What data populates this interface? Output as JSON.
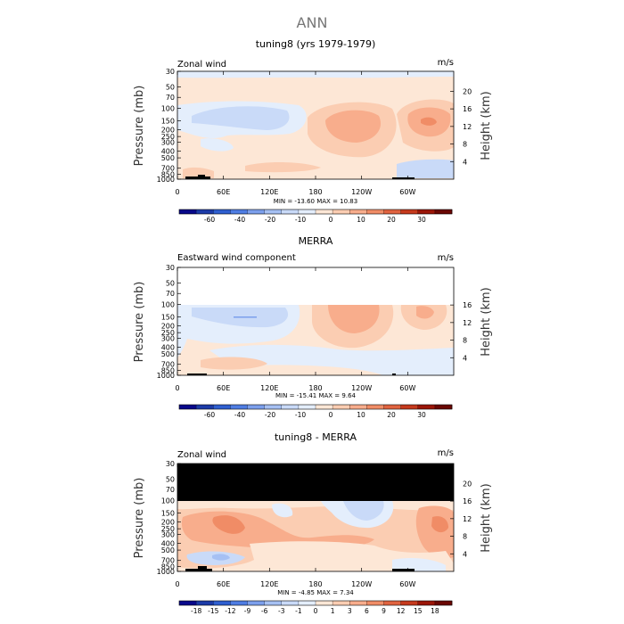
{
  "main_title": "ANN",
  "chart_data": [
    {
      "type": "heatmap",
      "title": "tuning8 (yrs 1979-1979)",
      "subtitle_left": "Zonal wind",
      "subtitle_right": "m/s",
      "ylabel": "Pressure (mb)",
      "ylabel_right": "Height (km)",
      "y_ticks": [
        "30",
        "50",
        "70",
        "100",
        "150",
        "200",
        "250",
        "300",
        "400",
        "500",
        "700",
        "850",
        "1000"
      ],
      "y_ticks_right": [
        "20",
        "16",
        "12",
        "8",
        "4"
      ],
      "x_ticks": [
        "0",
        "60E",
        "120E",
        "180",
        "120W",
        "60W"
      ],
      "stats": "MIN = -13.60   MAX =  10.83",
      "legend_ticks": [
        "-60",
        "-40",
        "-20",
        "-10",
        "0",
        "10",
        "20",
        "30"
      ],
      "colorbar": [
        "#08088a",
        "#1c3ba8",
        "#2f5fd0",
        "#4f7de3",
        "#7c9fec",
        "#a6c0f3",
        "#c9daf8",
        "#e4eefc",
        "#fde7d6",
        "#fbcdb2",
        "#f8ad8c",
        "#f08c66",
        "#e06340",
        "#c53a1d",
        "#9b1608",
        "#6a0703"
      ]
    },
    {
      "type": "heatmap",
      "title": "MERRA",
      "subtitle_left": "Eastward wind component",
      "subtitle_right": "m/s",
      "ylabel": "Pressure (mb)",
      "ylabel_right": "Height (km)",
      "y_ticks": [
        "30",
        "50",
        "70",
        "100",
        "150",
        "200",
        "250",
        "300",
        "400",
        "500",
        "700",
        "850",
        "1000"
      ],
      "y_ticks_right": [
        "16",
        "12",
        "8",
        "4"
      ],
      "x_ticks": [
        "0",
        "60E",
        "120E",
        "180",
        "120W",
        "60W"
      ],
      "stats": "MIN = -15.41   MAX =   9.64",
      "legend_ticks": [
        "-60",
        "-40",
        "-20",
        "-10",
        "0",
        "10",
        "20",
        "30"
      ],
      "colorbar": [
        "#08088a",
        "#1c3ba8",
        "#2f5fd0",
        "#4f7de3",
        "#7c9fec",
        "#a6c0f3",
        "#c9daf8",
        "#e4eefc",
        "#fde7d6",
        "#fbcdb2",
        "#f8ad8c",
        "#f08c66",
        "#e06340",
        "#c53a1d",
        "#9b1608",
        "#6a0703"
      ]
    },
    {
      "type": "heatmap",
      "title": "tuning8 - MERRA",
      "subtitle_left": "Zonal wind",
      "subtitle_right": "m/s",
      "ylabel": "Pressure (mb)",
      "ylabel_right": "Height (km)",
      "y_ticks": [
        "30",
        "50",
        "70",
        "100",
        "150",
        "200",
        "250",
        "300",
        "400",
        "500",
        "700",
        "850",
        "1000"
      ],
      "y_ticks_right": [
        "20",
        "16",
        "12",
        "8",
        "4"
      ],
      "x_ticks": [
        "0",
        "60E",
        "120E",
        "180",
        "120W",
        "60W"
      ],
      "stats": "MIN = -4.85   MAX =  7.34",
      "legend_ticks": [
        "-18",
        "-15",
        "-12",
        "-9",
        "-6",
        "-3",
        "-1",
        "0",
        "1",
        "3",
        "6",
        "9",
        "12",
        "15",
        "18"
      ],
      "colorbar": [
        "#08088a",
        "#1c3ba8",
        "#2f5fd0",
        "#4f7de3",
        "#7c9fec",
        "#a6c0f3",
        "#c9daf8",
        "#e4eefc",
        "#fde7d6",
        "#fbcdb2",
        "#f8ad8c",
        "#f08c66",
        "#e06340",
        "#c53a1d",
        "#9b1608",
        "#6a0703"
      ]
    }
  ]
}
